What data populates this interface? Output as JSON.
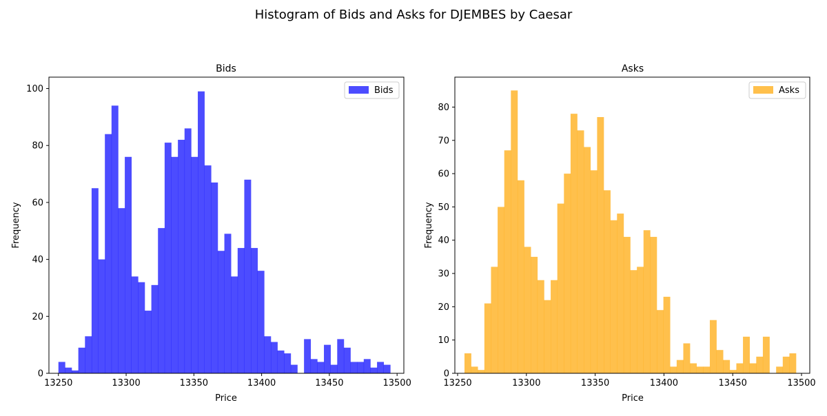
{
  "figure_title": "Histogram of Bids and Asks for DJEMBES by Caesar",
  "colors": {
    "bids": "#0000ff",
    "asks": "#ffa500"
  },
  "chart_data": [
    {
      "type": "bar",
      "title": "Bids",
      "xlabel": "Price",
      "ylabel": "Frequency",
      "legend": {
        "label": "Bids",
        "placement": "top-right"
      },
      "color": "#0000ff",
      "xlim": [
        13243,
        13505
      ],
      "ylim": [
        0,
        104
      ],
      "xticks": [
        13250,
        13300,
        13350,
        13400,
        13450,
        13500
      ],
      "yticks": [
        0,
        20,
        40,
        60,
        80,
        100
      ],
      "bin_start": 13250,
      "bin_width": 4.9,
      "values": [
        4,
        2,
        1,
        9,
        13,
        65,
        40,
        84,
        94,
        58,
        76,
        34,
        32,
        22,
        31,
        51,
        81,
        76,
        82,
        86,
        76,
        99,
        73,
        67,
        43,
        49,
        34,
        44,
        68,
        44,
        36,
        13,
        11,
        8,
        7,
        3,
        0,
        12,
        5,
        4,
        10,
        3,
        12,
        9,
        4,
        4,
        5,
        2,
        4,
        3
      ]
    },
    {
      "type": "bar",
      "title": "Asks",
      "xlabel": "Price",
      "ylabel": "Frequency",
      "legend": {
        "label": "Asks",
        "placement": "top-right"
      },
      "color": "#ffa500",
      "xlim": [
        13248,
        13506
      ],
      "ylim": [
        0,
        89
      ],
      "xticks": [
        13250,
        13300,
        13350,
        13400,
        13450,
        13500
      ],
      "yticks": [
        0,
        10,
        20,
        30,
        40,
        50,
        60,
        70,
        80
      ],
      "bin_start": 13255,
      "bin_width": 4.82,
      "values": [
        6,
        2,
        1,
        21,
        32,
        50,
        67,
        85,
        58,
        38,
        35,
        28,
        22,
        28,
        51,
        60,
        78,
        73,
        68,
        61,
        77,
        55,
        46,
        48,
        41,
        31,
        32,
        43,
        41,
        19,
        23,
        2,
        4,
        9,
        3,
        2,
        2,
        16,
        7,
        4,
        1,
        3,
        11,
        3,
        5,
        11,
        0,
        2,
        5,
        6
      ]
    }
  ]
}
